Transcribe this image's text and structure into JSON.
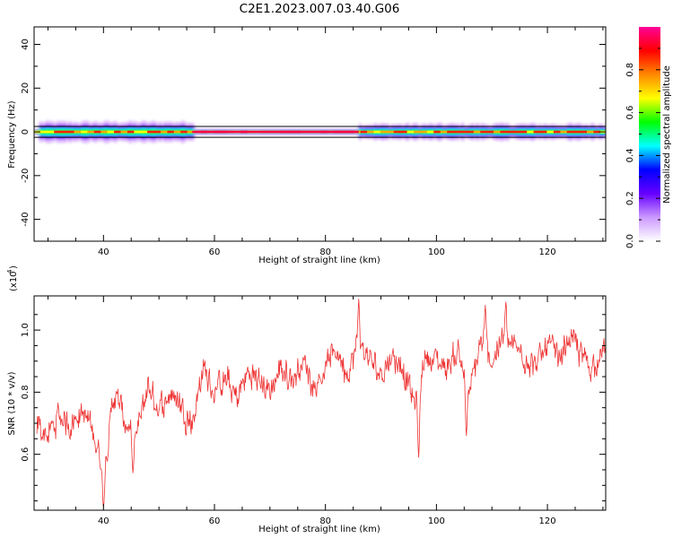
{
  "figure": {
    "title": "C2E1.2023.007.03.40.G06"
  },
  "chart_data": [
    {
      "type": "heatmap",
      "xlabel": "Height of straight line (km)",
      "ylabel": "Frequency (Hz)",
      "xlim": [
        27.5,
        130.5
      ],
      "ylim": [
        -50,
        48
      ],
      "xticks": [
        40,
        60,
        80,
        100,
        120
      ],
      "yticks": [
        -40,
        -20,
        0,
        20,
        40
      ],
      "colorbar": {
        "label": "Normalized spectral amplitude",
        "range": [
          0,
          1
        ],
        "ticks": [
          "0.0",
          "0.2",
          "0.4",
          "0.6",
          "0.8"
        ],
        "colormap": [
          "#ffffff",
          "#cc99ff",
          "#6600ff",
          "#0000ff",
          "#00ffff",
          "#00ff00",
          "#ffff00",
          "#ff8800",
          "#ff0000",
          "#ff0099"
        ]
      },
      "reference_lines_hz": [
        2.5,
        -2.5
      ],
      "energy_bands": [
        {
          "x_start": 28,
          "x_end": 56,
          "freq_halfwidth_hz": 4.5
        },
        {
          "x_start": 56,
          "x_end": 86,
          "freq_halfwidth_hz": 1.5
        },
        {
          "x_start": 86,
          "x_end": 130.5,
          "freq_halfwidth_hz": 3.5
        }
      ]
    },
    {
      "type": "line",
      "xlabel": "Height of straight line (km)",
      "ylabel": "SNR (10 * v/v)",
      "y_scale_label": "(x10",
      "y_scale_exponent": "4",
      "y_scale_suffix": ")",
      "xlim": [
        27.5,
        130.5
      ],
      "ylim": [
        0.42,
        1.11
      ],
      "xticks": [
        40,
        60,
        80,
        100,
        120
      ],
      "yticks": [
        "0.6",
        "0.8",
        "1.0"
      ],
      "series": [
        {
          "color": "#ee3333",
          "trend": [
            {
              "x": 28,
              "y": 0.7
            },
            {
              "x": 30,
              "y": 0.66
            },
            {
              "x": 32,
              "y": 0.72
            },
            {
              "x": 34,
              "y": 0.7
            },
            {
              "x": 36,
              "y": 0.74
            },
            {
              "x": 38,
              "y": 0.68
            },
            {
              "x": 40,
              "y": 0.55
            },
            {
              "x": 42,
              "y": 0.8
            },
            {
              "x": 44,
              "y": 0.7
            },
            {
              "x": 46,
              "y": 0.66
            },
            {
              "x": 48,
              "y": 0.82
            },
            {
              "x": 50,
              "y": 0.74
            },
            {
              "x": 52,
              "y": 0.8
            },
            {
              "x": 54,
              "y": 0.76
            },
            {
              "x": 56,
              "y": 0.7
            },
            {
              "x": 58,
              "y": 0.88
            },
            {
              "x": 60,
              "y": 0.8
            },
            {
              "x": 62,
              "y": 0.84
            },
            {
              "x": 64,
              "y": 0.78
            },
            {
              "x": 66,
              "y": 0.86
            },
            {
              "x": 68,
              "y": 0.84
            },
            {
              "x": 70,
              "y": 0.8
            },
            {
              "x": 72,
              "y": 0.88
            },
            {
              "x": 74,
              "y": 0.84
            },
            {
              "x": 76,
              "y": 0.9
            },
            {
              "x": 78,
              "y": 0.82
            },
            {
              "x": 80,
              "y": 0.88
            },
            {
              "x": 82,
              "y": 0.94
            },
            {
              "x": 84,
              "y": 0.86
            },
            {
              "x": 86,
              "y": 0.96
            },
            {
              "x": 88,
              "y": 0.9
            },
            {
              "x": 90,
              "y": 0.86
            },
            {
              "x": 92,
              "y": 0.92
            },
            {
              "x": 94,
              "y": 0.88
            },
            {
              "x": 96,
              "y": 0.76
            },
            {
              "x": 98,
              "y": 0.92
            },
            {
              "x": 100,
              "y": 0.9
            },
            {
              "x": 102,
              "y": 0.88
            },
            {
              "x": 104,
              "y": 0.94
            },
            {
              "x": 106,
              "y": 0.8
            },
            {
              "x": 108,
              "y": 0.96
            },
            {
              "x": 110,
              "y": 0.9
            },
            {
              "x": 112,
              "y": 0.98
            },
            {
              "x": 114,
              "y": 0.94
            },
            {
              "x": 116,
              "y": 0.92
            },
            {
              "x": 118,
              "y": 0.88
            },
            {
              "x": 120,
              "y": 0.96
            },
            {
              "x": 122,
              "y": 0.9
            },
            {
              "x": 124,
              "y": 0.98
            },
            {
              "x": 126,
              "y": 0.92
            },
            {
              "x": 128,
              "y": 0.88
            },
            {
              "x": 130,
              "y": 0.94
            }
          ],
          "noise_amplitude": 0.07,
          "dips": [
            {
              "x": 40.0,
              "y": 0.43
            },
            {
              "x": 45.3,
              "y": 0.54
            },
            {
              "x": 96.8,
              "y": 0.59
            },
            {
              "x": 105.4,
              "y": 0.66
            }
          ],
          "peaks": [
            {
              "x": 86.0,
              "y": 1.1
            },
            {
              "x": 108.8,
              "y": 1.08
            },
            {
              "x": 112.5,
              "y": 1.09
            }
          ]
        }
      ]
    }
  ]
}
